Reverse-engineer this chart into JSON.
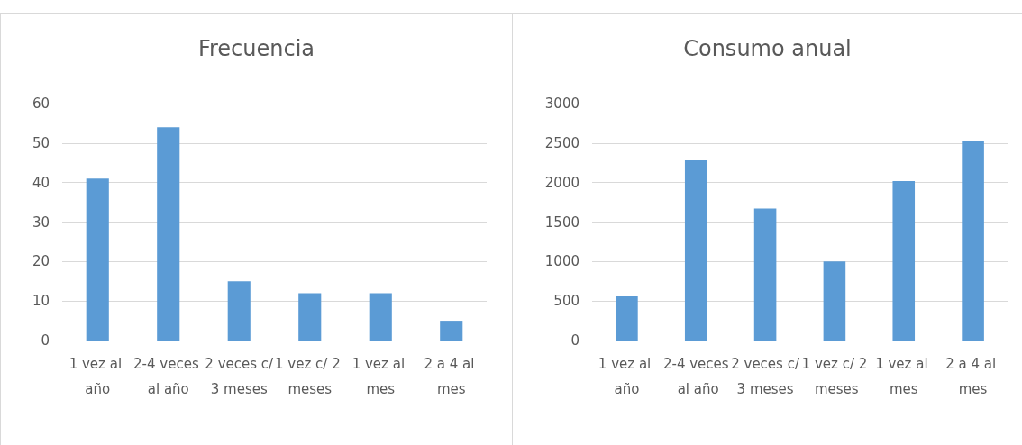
{
  "chart_data": [
    {
      "type": "bar",
      "title": "Frecuencia",
      "categories": [
        "1 vez al año",
        "2-4 veces al año",
        "2 veces c/3 meses",
        "1 vez c/ 2 meses",
        "1 vez al mes",
        "2 a 4 al mes"
      ],
      "values": [
        41,
        54,
        15,
        12,
        12,
        5
      ],
      "color": "#5b9bd5",
      "ylim": [
        0,
        60
      ],
      "yticks": [
        0,
        10,
        20,
        30,
        40,
        50,
        60
      ],
      "grid": "y"
    },
    {
      "type": "bar",
      "title": "Consumo anual",
      "categories": [
        "1 vez al año",
        "2-4 veces al año",
        "2 veces c/3 meses",
        "1 vez c/ 2 meses",
        "1 vez al mes",
        "2 a 4 al mes"
      ],
      "values": [
        560,
        2280,
        1670,
        1000,
        2020,
        2530
      ],
      "color": "#5b9bd5",
      "ylim": [
        0,
        3000
      ],
      "yticks": [
        0,
        500,
        1000,
        1500,
        2000,
        2500,
        3000
      ],
      "grid": "y"
    }
  ]
}
